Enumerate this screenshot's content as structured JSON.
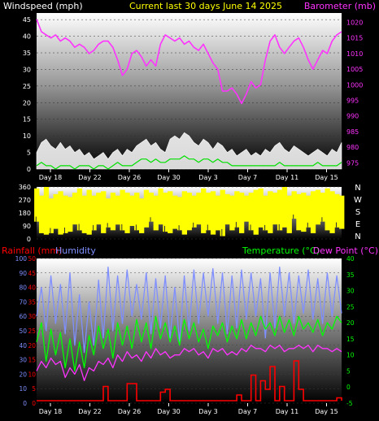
{
  "title": "Current last 30 days June 14 2025",
  "colors": {
    "background": "#000000",
    "wind": "#ffffff",
    "gust": "#ffffff",
    "avgwind": "#00e000",
    "barometer": "#ff33ff",
    "direction": "#ffff00",
    "rainfall": "#ff0000",
    "humidity": "#7f8fff",
    "temperature": "#00ff00",
    "dewpoint": "#ff33ff",
    "title": "#ffff00",
    "dateLabel": "#ffffff"
  },
  "chart_data": [
    {
      "type": "line",
      "name": "wind-barometer",
      "left_label": "Windspeed (mph)",
      "right_label": "Barometer (mb)",
      "x_ticks": [
        "Day 18",
        "Day 22",
        "Day 26",
        "Day 30",
        "Day 3",
        "Day 7",
        "Day 11",
        "Day 15"
      ],
      "y_left_ticks": [
        0,
        5,
        10,
        15,
        20,
        25,
        30,
        35,
        40,
        45
      ],
      "y_left_range": [
        0,
        47
      ],
      "y_right_ticks": [
        975,
        980,
        985,
        990,
        995,
        1000,
        1005,
        1010,
        1015,
        1020
      ],
      "y_right_range": [
        973,
        1023
      ],
      "barometer": [
        1021,
        1017,
        1016,
        1015,
        1016,
        1014,
        1015,
        1014,
        1012,
        1013,
        1012,
        1010,
        1011,
        1013,
        1014,
        1014,
        1012,
        1008,
        1003,
        1005,
        1010,
        1011,
        1009,
        1006,
        1008,
        1006,
        1013,
        1016,
        1015,
        1014,
        1015,
        1013,
        1014,
        1012,
        1011,
        1013,
        1010,
        1007,
        1005,
        998,
        998,
        999,
        997,
        994,
        997,
        1001,
        999,
        1000,
        1008,
        1014,
        1016,
        1012,
        1010,
        1012,
        1014,
        1015,
        1012,
        1008,
        1005,
        1008,
        1011,
        1010,
        1014,
        1016,
        1017
      ],
      "wind_gust": [
        5,
        8,
        9,
        7,
        6,
        8,
        6,
        7,
        5,
        6,
        4,
        5,
        3,
        4,
        5,
        3,
        5,
        6,
        4,
        6,
        5,
        7,
        8,
        9,
        7,
        8,
        6,
        5,
        9,
        10,
        9,
        11,
        10,
        8,
        7,
        9,
        8,
        6,
        8,
        7,
        5,
        6,
        4,
        5,
        6,
        4,
        5,
        4,
        6,
        5,
        7,
        8,
        6,
        5,
        7,
        6,
        5,
        4,
        5,
        6,
        5,
        4,
        6,
        5,
        8
      ],
      "wind_avg": [
        1,
        2,
        1,
        1,
        0,
        1,
        1,
        1,
        0,
        1,
        1,
        1,
        0,
        1,
        1,
        0,
        1,
        2,
        1,
        1,
        1,
        2,
        3,
        3,
        2,
        3,
        2,
        2,
        3,
        3,
        3,
        4,
        3,
        3,
        2,
        3,
        3,
        2,
        3,
        2,
        2,
        1,
        1,
        1,
        1,
        1,
        1,
        1,
        1,
        1,
        1,
        2,
        1,
        1,
        1,
        1,
        1,
        1,
        1,
        2,
        1,
        1,
        1,
        1,
        2
      ]
    },
    {
      "type": "area",
      "name": "wind-direction",
      "right_label": "N W S E N",
      "right_letters": [
        "N",
        "W",
        "S",
        "E",
        "N"
      ],
      "x_ticks": [
        "Day 18",
        "Day 22",
        "Day 26",
        "Day 30",
        "Day 3",
        "Day 7",
        "Day 11",
        "Day 15"
      ],
      "y_ticks": [
        0,
        90,
        180,
        270,
        360
      ],
      "y_range": [
        0,
        360
      ],
      "direction_low": [
        120,
        40,
        30,
        40,
        70,
        30,
        40,
        50,
        100,
        60,
        40,
        30,
        60,
        100,
        40,
        80,
        60,
        100,
        60,
        40,
        90,
        60,
        40,
        80,
        120,
        60,
        100,
        50,
        40,
        70,
        60,
        30,
        60,
        80,
        100,
        40,
        60,
        30,
        60,
        20,
        100,
        60,
        80,
        40,
        120,
        60,
        30,
        80,
        60,
        40,
        100,
        60,
        80,
        40,
        140,
        60,
        50,
        80,
        40,
        100,
        120,
        60,
        40,
        80,
        70
      ],
      "direction_high": [
        350,
        300,
        360,
        280,
        310,
        330,
        300,
        290,
        320,
        350,
        300,
        340,
        300,
        320,
        330,
        280,
        320,
        300,
        340,
        320,
        300,
        320,
        280,
        340,
        320,
        300,
        350,
        320,
        330,
        300,
        290,
        330,
        320,
        300,
        320,
        350,
        320,
        330,
        300,
        340,
        310,
        300,
        330,
        320,
        300,
        320,
        340,
        350,
        300,
        330,
        320,
        340,
        360,
        300,
        330,
        310,
        320,
        300,
        330,
        340,
        320,
        350,
        330,
        310,
        300
      ]
    },
    {
      "type": "line",
      "name": "rain-humidity-temperature",
      "left_label_rain": "Rainfall (mm)",
      "left_label_humidity": "Humidity",
      "right_label_temp": "Temperature (°C)",
      "right_label_dew": "Dew Point (°C)",
      "x_ticks": [
        "Day 18",
        "Day 22",
        "Day 26",
        "Day 30",
        "Day 3",
        "Day 7",
        "Day 11",
        "Day 15"
      ],
      "humidity_ticks": [
        0,
        10,
        20,
        30,
        40,
        50,
        60,
        70,
        80,
        90,
        100
      ],
      "humidity_range": [
        0,
        100
      ],
      "rain_ticks": [
        0,
        5,
        10,
        15,
        20,
        25,
        30,
        35,
        40,
        45,
        50
      ],
      "rain_range": [
        0,
        50
      ],
      "temp_ticks": [
        -5,
        0,
        5,
        10,
        15,
        20,
        25,
        30,
        35,
        40
      ],
      "temp_range": [
        -5,
        40
      ],
      "humidity": [
        60,
        80,
        50,
        88,
        55,
        82,
        48,
        90,
        40,
        75,
        35,
        70,
        40,
        85,
        45,
        94,
        50,
        88,
        55,
        92,
        60,
        82,
        58,
        90,
        48,
        86,
        52,
        88,
        45,
        80,
        42,
        88,
        50,
        92,
        55,
        90,
        60,
        93,
        55,
        90,
        48,
        88,
        52,
        92,
        58,
        90,
        60,
        86,
        45,
        90,
        52,
        94,
        60,
        90,
        55,
        88,
        62,
        92,
        58,
        86,
        55,
        90,
        60,
        88,
        62
      ],
      "rainfall": [
        0,
        0,
        0,
        0,
        0,
        0,
        0,
        0,
        0,
        0,
        0,
        0,
        0,
        0,
        5,
        0,
        0,
        0,
        0,
        6,
        6,
        0,
        0,
        0,
        0,
        0,
        3,
        4,
        0,
        0,
        0,
        0,
        0,
        0,
        0,
        0,
        0,
        0,
        0,
        0,
        0,
        0,
        2,
        0,
        0,
        9,
        0,
        7,
        4,
        12,
        0,
        5,
        0,
        0,
        14,
        4,
        0,
        0,
        0,
        0,
        0,
        0,
        0,
        1,
        0
      ],
      "temperature": [
        14,
        20,
        8,
        18,
        10,
        17,
        6,
        15,
        5,
        14,
        6,
        16,
        10,
        19,
        12,
        18,
        9,
        20,
        13,
        19,
        12,
        21,
        14,
        20,
        12,
        22,
        15,
        20,
        14,
        19,
        13,
        21,
        15,
        20,
        14,
        18,
        12,
        19,
        16,
        20,
        14,
        19,
        15,
        21,
        15,
        20,
        16,
        22,
        18,
        20,
        16,
        22,
        17,
        21,
        16,
        22,
        18,
        20,
        17,
        21,
        16,
        20,
        18,
        22,
        20
      ],
      "dewpoint": [
        5,
        8,
        6,
        9,
        7,
        8,
        3,
        6,
        4,
        7,
        2,
        6,
        5,
        8,
        7,
        9,
        6,
        10,
        8,
        11,
        9,
        10,
        8,
        11,
        9,
        12,
        10,
        11,
        9,
        10,
        10,
        12,
        11,
        12,
        10,
        11,
        9,
        12,
        11,
        12,
        10,
        11,
        10,
        12,
        11,
        13,
        12,
        12,
        11,
        13,
        12,
        13,
        11,
        12,
        12,
        13,
        12,
        13,
        11,
        13,
        12,
        12,
        11,
        12,
        11
      ]
    }
  ]
}
